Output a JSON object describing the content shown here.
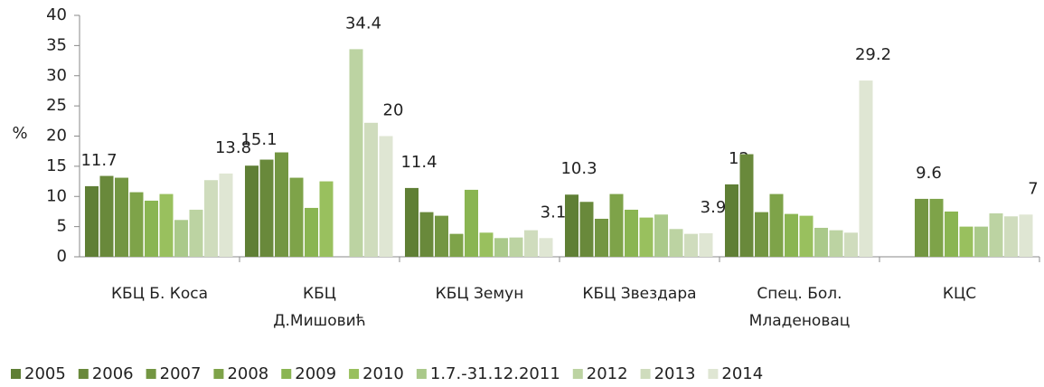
{
  "chart_data": {
    "type": "bar",
    "categories": [
      "КБЦ Б. Коса",
      "КБЦ\nД.Мишовић",
      "КБЦ Земун",
      "КБЦ Звездара",
      "Спец. Бол.\nМладеновац",
      "КЦС"
    ],
    "ylabel": "%",
    "ylim": [
      0,
      40
    ],
    "yticks": [
      0,
      5,
      10,
      15,
      20,
      25,
      30,
      35,
      40
    ],
    "series": [
      {
        "name": "2005",
        "color": "#5f7f35",
        "values": [
          11.7,
          15.1,
          11.4,
          10.3,
          12,
          null
        ],
        "value_labels": [
          "11.7",
          "15.1",
          "11.4",
          "10.3",
          "12",
          null
        ]
      },
      {
        "name": "2006",
        "color": "#69893b",
        "values": [
          13.4,
          16.1,
          7.4,
          9.1,
          17,
          null
        ]
      },
      {
        "name": "2007",
        "color": "#739642",
        "values": [
          13.1,
          17.3,
          6.8,
          6.3,
          7.4,
          9.6
        ],
        "value_labels": [
          null,
          null,
          null,
          null,
          null,
          "9.6"
        ]
      },
      {
        "name": "2008",
        "color": "#7ea349",
        "values": [
          10.7,
          13.1,
          3.8,
          10.4,
          10.4,
          9.6
        ]
      },
      {
        "name": "2009",
        "color": "#8ab552",
        "values": [
          9.3,
          8.1,
          11.1,
          7.8,
          7.1,
          7.5
        ]
      },
      {
        "name": "2010",
        "color": "#99c05e",
        "values": [
          10.4,
          12.5,
          4.0,
          6.5,
          6.8,
          5.0
        ]
      },
      {
        "name": "1.7.-31.12.2011",
        "color": "#aac98a",
        "values": [
          6.1,
          null,
          3.1,
          7.0,
          4.8,
          5.0
        ]
      },
      {
        "name": "2012",
        "color": "#bcd3a2",
        "values": [
          7.8,
          34.4,
          3.2,
          4.6,
          4.4,
          7.2
        ],
        "value_labels": [
          null,
          "34.4",
          null,
          null,
          null,
          null
        ]
      },
      {
        "name": "2013",
        "color": "#cfdcbd",
        "values": [
          12.7,
          22.2,
          4.4,
          3.8,
          4.0,
          6.7
        ]
      },
      {
        "name": "2014",
        "color": "#dfe6d3",
        "values": [
          13.8,
          20,
          3.1,
          3.9,
          29.2,
          7
        ],
        "value_labels": [
          "13.8",
          "20",
          "3.1",
          "3.9",
          "29.2",
          "7"
        ]
      }
    ]
  }
}
